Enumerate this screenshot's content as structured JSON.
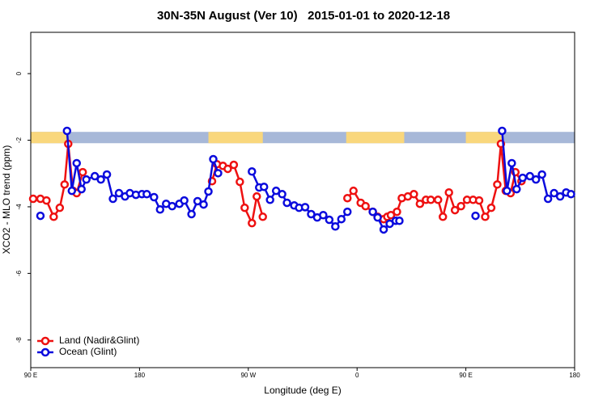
{
  "chart_data": {
    "type": "line",
    "title": "30N-35N August (Ver 10)   2015-01-01 to 2020-12-18",
    "x_label": "Longitude (deg E)",
    "y_label": "XCO2 - MLO trend (ppm)",
    "xlim": [
      90,
      540
    ],
    "xticks": [
      {
        "value": 90,
        "label": "90 E"
      },
      {
        "value": 180,
        "label": "180"
      },
      {
        "value": 270,
        "label": "90 W"
      },
      {
        "value": 360,
        "label": "0"
      },
      {
        "value": 450,
        "label": "90 E"
      },
      {
        "value": 540,
        "label": "180"
      }
    ],
    "ylim": [
      -8.83,
      1.24
    ],
    "yticks": [
      0,
      -2,
      -4,
      -6,
      -8
    ],
    "legend": "bottom-left",
    "surface_band": {
      "y": [
        -2.09,
        -1.75
      ],
      "land": [
        [
          90,
          121
        ],
        [
          237,
          282
        ],
        [
          351,
          399
        ],
        [
          450,
          481
        ]
      ],
      "land_color": "#f9d77c",
      "ocean_color": "#a7b8d8"
    },
    "series": [
      {
        "name": "Land (Nadir&Glint)",
        "color": "#ee1111",
        "x": [
          92,
          98,
          103,
          109,
          114,
          118,
          121,
          125,
          128,
          133,
          null,
          240,
          244,
          249,
          253,
          258,
          263,
          267,
          273,
          277,
          282,
          null,
          352,
          357,
          363,
          367,
          373,
          377,
          382,
          385,
          388,
          393,
          397,
          402,
          407,
          412,
          417,
          421,
          427,
          431,
          436,
          441,
          446,
          451,
          456,
          461,
          466,
          471,
          476,
          479,
          483,
          487,
          491,
          496
        ],
        "values": [
          -3.76,
          -3.76,
          -3.81,
          -4.3,
          -4.03,
          -3.33,
          -2.11,
          -3.52,
          -3.59,
          -2.96,
          null,
          -3.23,
          -2.72,
          -2.77,
          -2.86,
          -2.74,
          -3.25,
          -4.03,
          -4.49,
          -3.69,
          -4.3,
          null,
          -3.74,
          -3.52,
          -3.88,
          -3.98,
          -4.15,
          -4.3,
          -4.37,
          -4.3,
          -4.25,
          -4.15,
          -3.74,
          -3.69,
          -3.62,
          -3.91,
          -3.79,
          -3.79,
          -3.79,
          -4.3,
          -3.57,
          -4.1,
          -3.98,
          -3.79,
          -3.79,
          -3.81,
          -4.3,
          -4.03,
          -3.33,
          -2.11,
          -3.52,
          -3.59,
          -2.96,
          -3.23
        ]
      },
      {
        "name": "Ocean (Glint)",
        "color": "#0b0bdd",
        "x": [
          98,
          null,
          120,
          124,
          128,
          132,
          136,
          143,
          148,
          153,
          158,
          163,
          168,
          172,
          177,
          182,
          186,
          192,
          197,
          202,
          207,
          213,
          217,
          223,
          228,
          233,
          237,
          241,
          245,
          null,
          273,
          279,
          283,
          288,
          293,
          298,
          302,
          308,
          312,
          317,
          322,
          327,
          332,
          337,
          342,
          347,
          352,
          null,
          373,
          377,
          382,
          387,
          392,
          395,
          null,
          458,
          null,
          480,
          484,
          488,
          492,
          497,
          503,
          508,
          513,
          518,
          523,
          528,
          533,
          537
        ],
        "values": [
          -4.27,
          null,
          -1.72,
          -3.52,
          -2.69,
          -3.47,
          -3.18,
          -3.08,
          -3.18,
          -3.03,
          -3.76,
          -3.59,
          -3.69,
          -3.59,
          -3.64,
          -3.62,
          -3.62,
          -3.71,
          -4.08,
          -3.91,
          -3.98,
          -3.91,
          -3.81,
          -4.22,
          -3.83,
          -3.93,
          -3.54,
          -2.57,
          -2.99,
          null,
          -2.94,
          -3.42,
          -3.4,
          -3.79,
          -3.52,
          -3.62,
          -3.88,
          -3.96,
          -4.03,
          -4.01,
          -4.22,
          -4.32,
          -4.25,
          -4.39,
          -4.59,
          -4.37,
          -4.15,
          null,
          -4.15,
          -4.32,
          -4.68,
          -4.51,
          -4.42,
          -4.42,
          null,
          -4.27,
          null,
          -1.72,
          -3.52,
          -2.69,
          -3.47,
          -3.13,
          -3.08,
          -3.18,
          -3.03,
          -3.76,
          -3.59,
          -3.69,
          -3.57,
          -3.62
        ]
      }
    ]
  }
}
